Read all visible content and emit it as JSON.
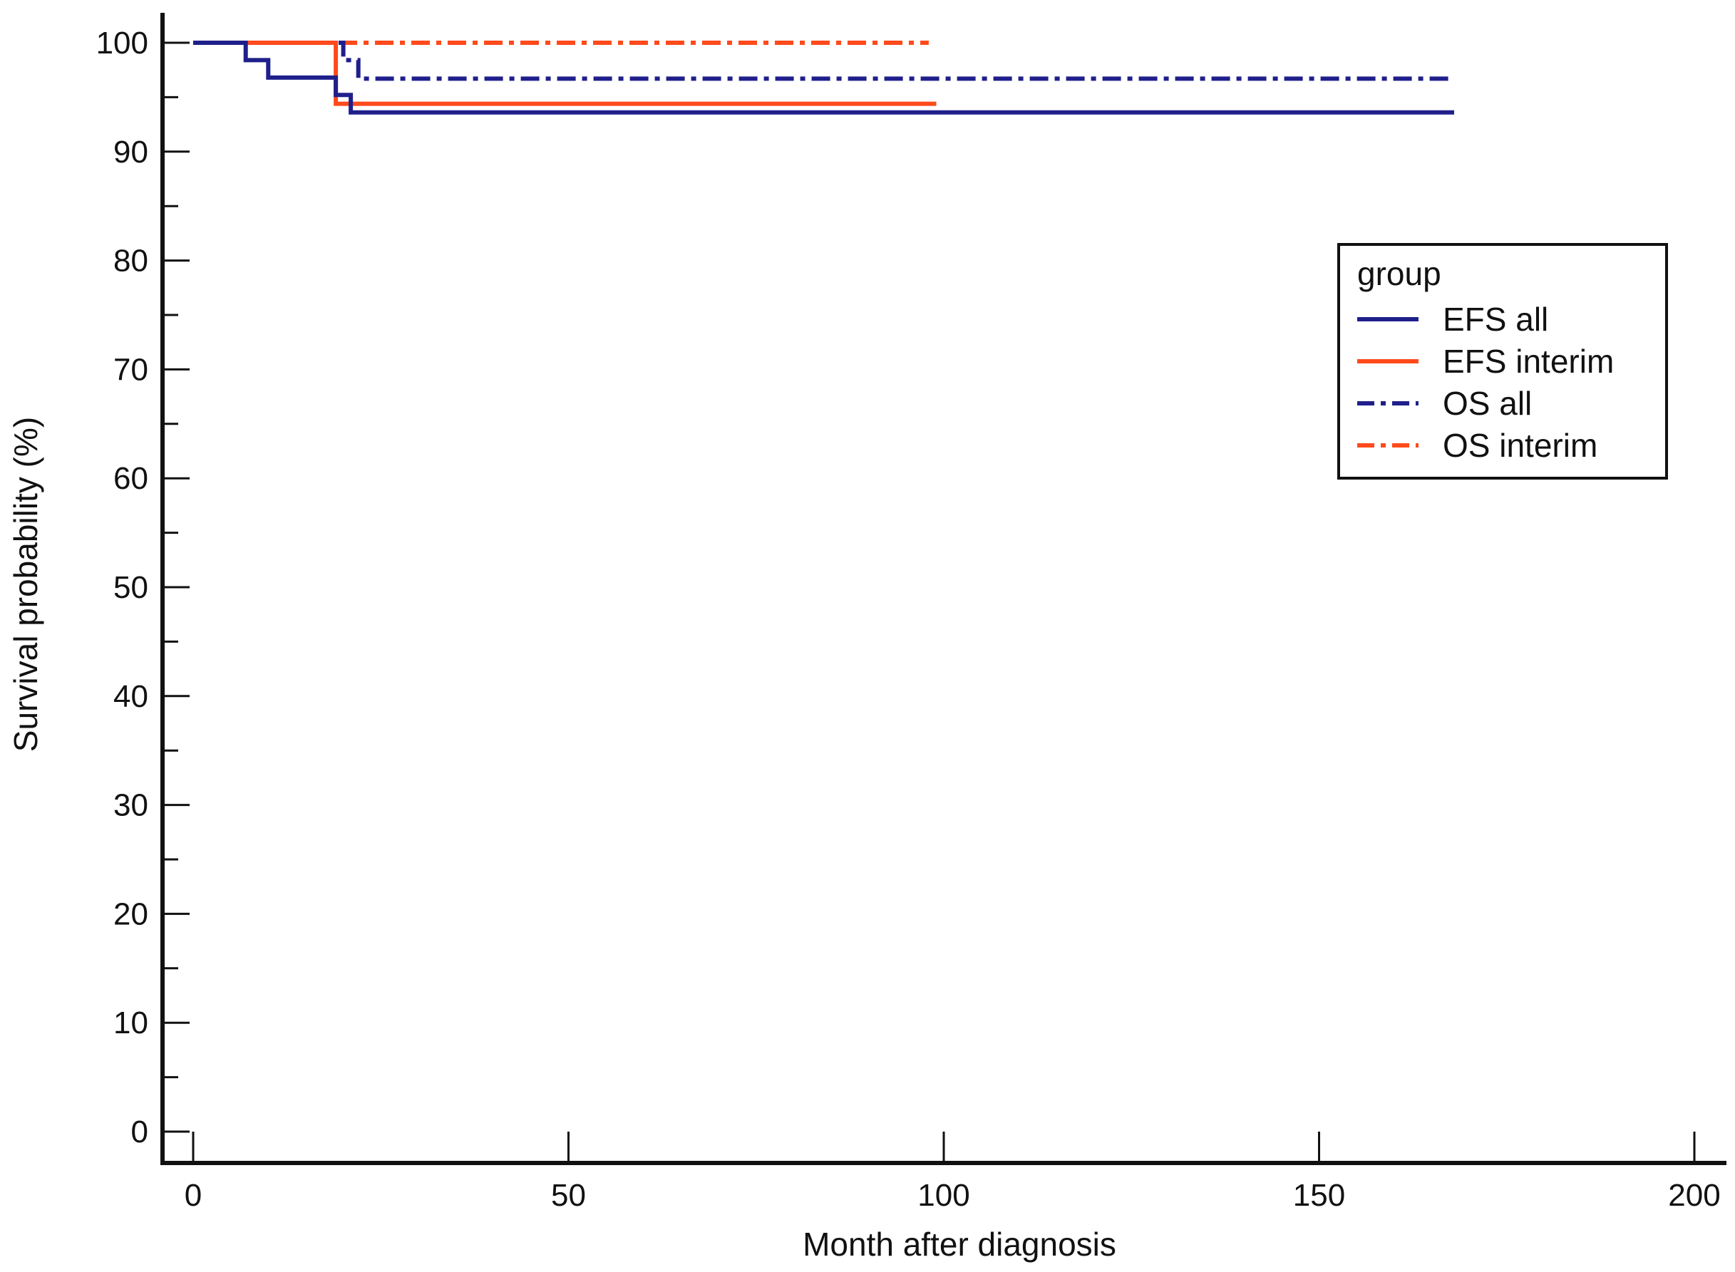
{
  "chart_data": {
    "type": "line",
    "subtype": "kaplan-meier-step",
    "xlabel": "Month after diagnosis",
    "ylabel": "Survival probability (%)",
    "xlim": [
      0,
      200
    ],
    "ylim": [
      0,
      100
    ],
    "xticks": [
      0,
      50,
      100,
      150,
      200
    ],
    "yticks": [
      0,
      10,
      20,
      30,
      40,
      50,
      60,
      70,
      80,
      90,
      100
    ],
    "grid": false,
    "legend": {
      "title": "group",
      "position": "right",
      "entries": [
        "EFS all",
        "EFS interim",
        "OS all",
        "OS interim"
      ]
    },
    "series": [
      {
        "name": "EFS all",
        "color": "#1f1f8c",
        "style": "solid",
        "points": [
          [
            0,
            100
          ],
          [
            7,
            100
          ],
          [
            7,
            98.4
          ],
          [
            10,
            98.4
          ],
          [
            10,
            96.8
          ],
          [
            19,
            96.8
          ],
          [
            19,
            95.2
          ],
          [
            21,
            95.2
          ],
          [
            21,
            93.6
          ],
          [
            168,
            93.6
          ]
        ]
      },
      {
        "name": "EFS interim",
        "color": "#ff4a1c",
        "style": "solid",
        "points": [
          [
            0,
            100
          ],
          [
            19,
            100
          ],
          [
            19,
            94.4
          ],
          [
            99,
            94.4
          ]
        ]
      },
      {
        "name": "OS all",
        "color": "#1f1f8c",
        "style": "dashdot",
        "points": [
          [
            0,
            100
          ],
          [
            20,
            100
          ],
          [
            20,
            98.4
          ],
          [
            22,
            98.4
          ],
          [
            22,
            96.7
          ],
          [
            168,
            96.7
          ]
        ]
      },
      {
        "name": "OS interim",
        "color": "#ff4a1c",
        "style": "dashdot",
        "points": [
          [
            0,
            100
          ],
          [
            98,
            100
          ]
        ]
      }
    ]
  }
}
